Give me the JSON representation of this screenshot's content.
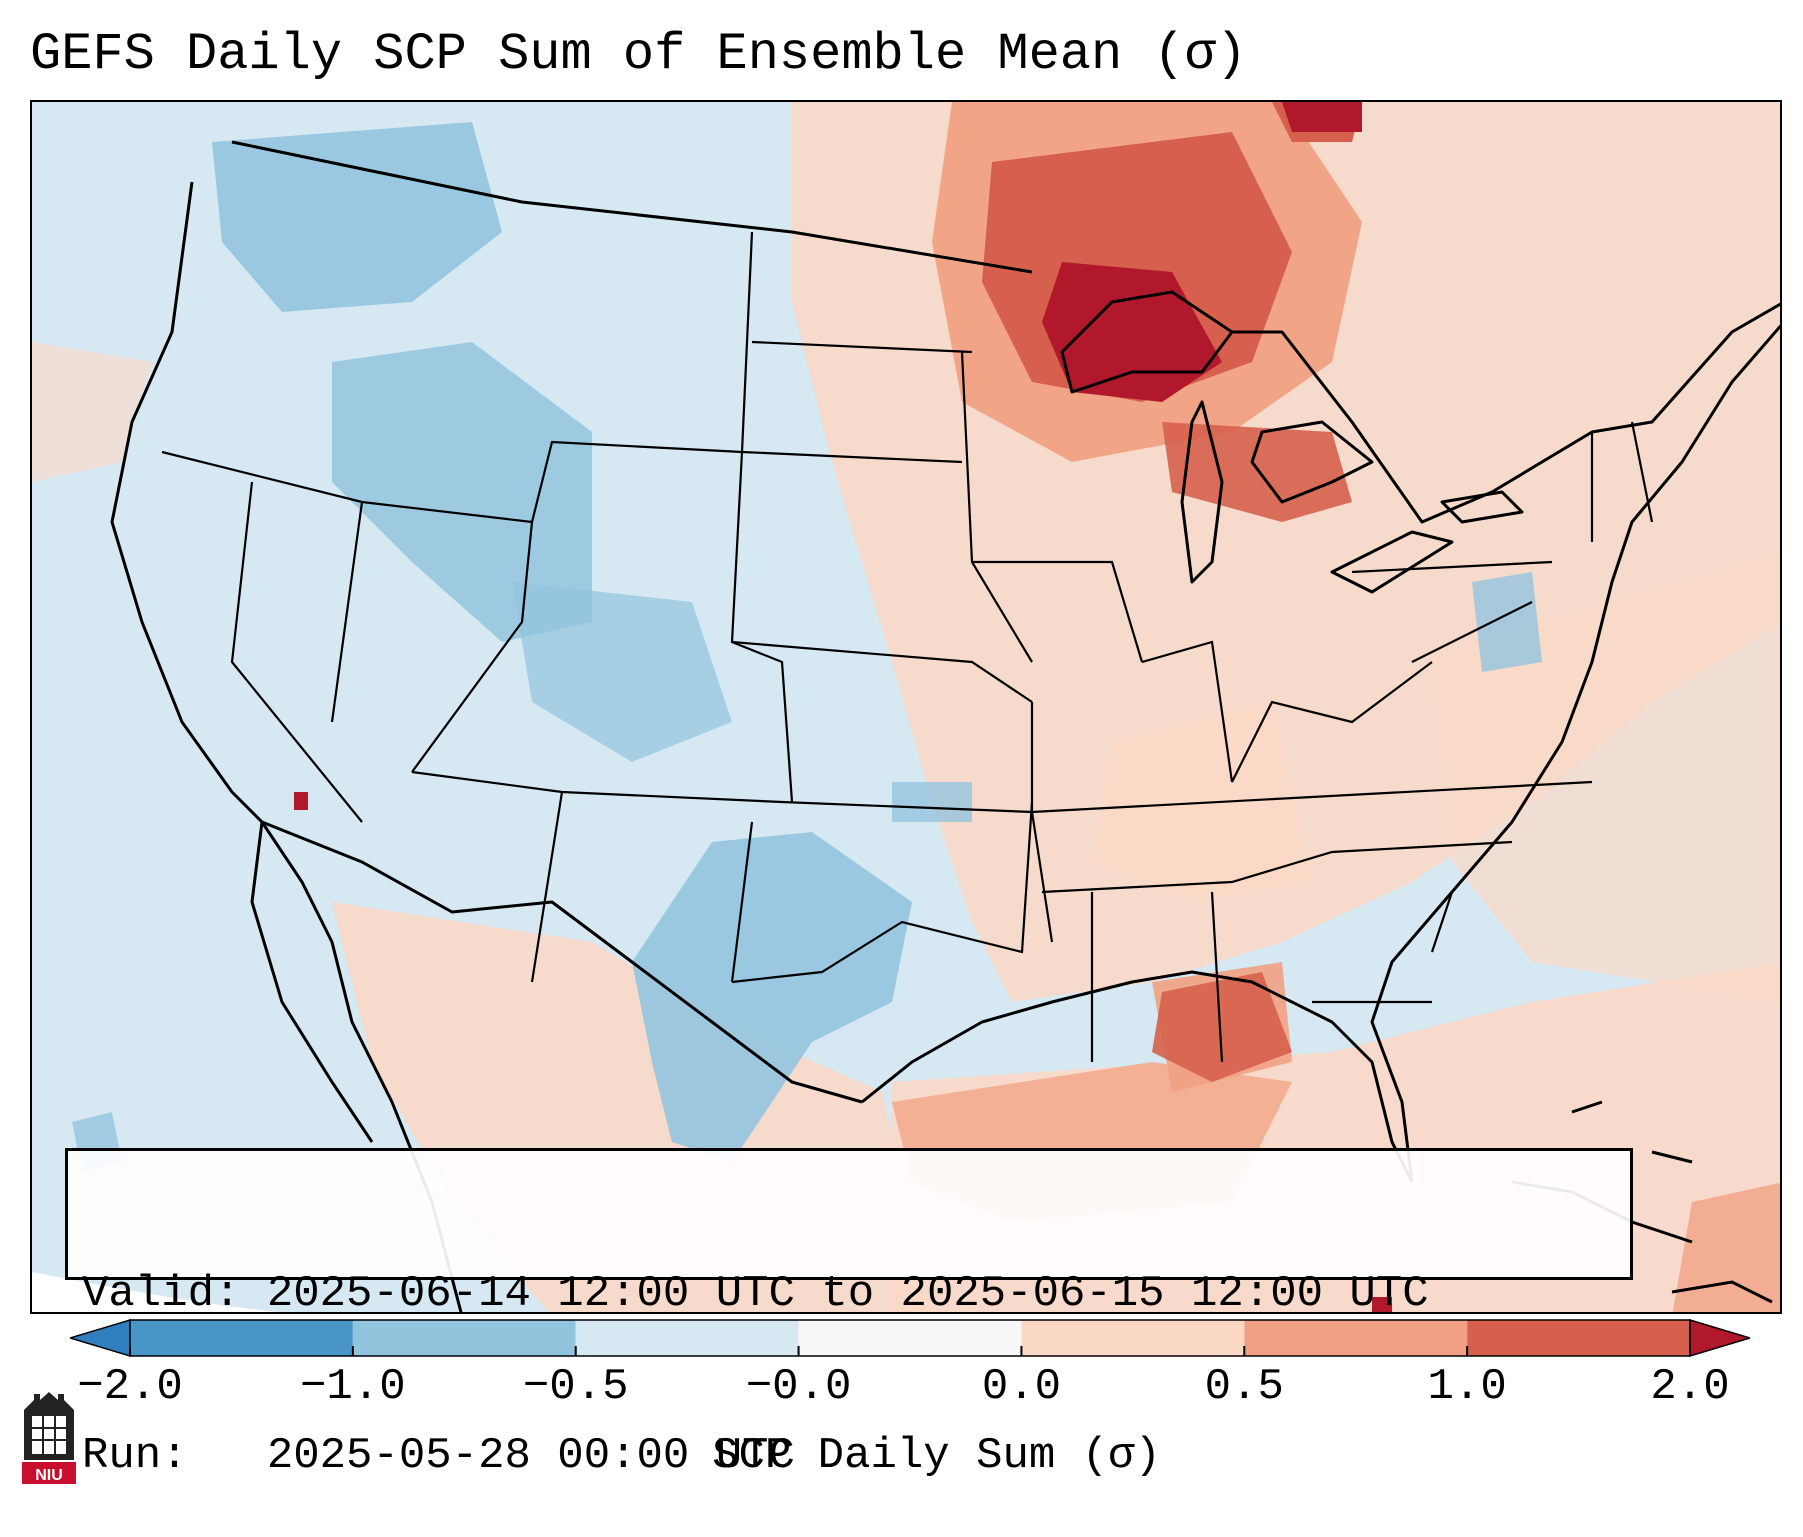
{
  "title": "GEFS Daily SCP Sum of Ensemble Mean (σ)",
  "info": {
    "valid_label": "Valid:",
    "valid_value": "2025-06-14 12:00 UTC to 2025-06-15 12:00 UTC",
    "run_label": "Run:",
    "run_value": "2025-05-28 00:00 UTC"
  },
  "colorbar": {
    "label": "SCP Daily Sum (σ)",
    "ticks": [
      "−2.0",
      "−1.0",
      "−0.5",
      "−0.0",
      "0.0",
      "0.5",
      "1.0",
      "2.0"
    ],
    "bins": [
      {
        "range": "< -2.0",
        "color": "#2f7fbf"
      },
      {
        "range": "-2.0 to -1.0",
        "color": "#4a95c8"
      },
      {
        "range": "-1.0 to -0.5",
        "color": "#93c4de"
      },
      {
        "range": "-0.5 to 0",
        "color": "#d6e8f2"
      },
      {
        "range": "0",
        "color": "#f7f7f7"
      },
      {
        "range": "0 to 0.5",
        "color": "#fbd8c6"
      },
      {
        "range": "0.5 to 1.0",
        "color": "#f1a183"
      },
      {
        "range": "1.0 to 2.0",
        "color": "#d6604d"
      },
      {
        "range": "> 2.0",
        "color": "#b2182b"
      }
    ]
  },
  "map": {
    "region": "Contiguous United States",
    "field": "SCP daily sum anomaly",
    "hotspots": [
      "Upper Great Lakes / Lake Superior",
      "Central Gulf Coast"
    ],
    "cool_areas": [
      "Idaho / Wyoming",
      "West Texas",
      "Pacific Northwest"
    ]
  },
  "logo": {
    "text": "NIU",
    "color": "#c8102e"
  }
}
